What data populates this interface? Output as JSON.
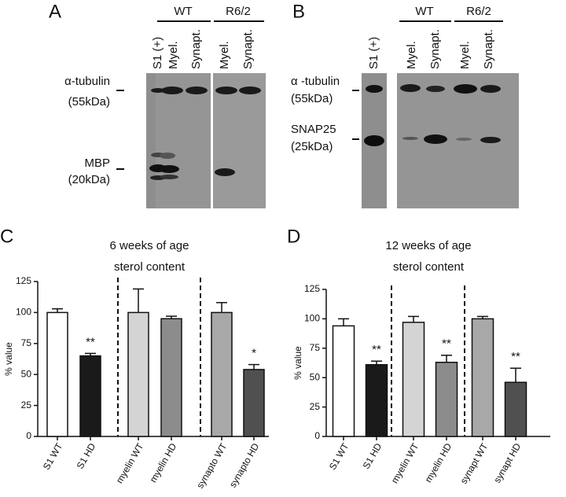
{
  "blots": [
    {
      "panel": "A",
      "groups": [
        "WT",
        "R6/2"
      ],
      "lanes": [
        "S1 (+)",
        "Myel.",
        "Synapt.",
        "Myel.",
        "Synapt."
      ],
      "markers": [
        {
          "name": "α-tubulin",
          "size": "(55kDa)"
        },
        {
          "name": "MBP",
          "size": "(20kDa)"
        }
      ]
    },
    {
      "panel": "B",
      "groups": [
        "WT",
        "R6/2"
      ],
      "lanes": [
        "S1 (+)",
        "Myel.",
        "Synapt.",
        "Myel.",
        "Synapt."
      ],
      "markers": [
        {
          "name": "α -tubulin",
          "size": "(55kDa)"
        },
        {
          "name": "SNAP25",
          "size": "(25kDa)"
        }
      ]
    }
  ],
  "chart_data": [
    {
      "type": "bar",
      "panel": "C",
      "title": [
        "6 weeks of age",
        "sterol content"
      ],
      "y_label": "% value",
      "categories": [
        "S1 WT",
        "S1 HD",
        "myelin WT",
        "myelin HD",
        "synapto WT",
        "synapto HD"
      ],
      "values": [
        100,
        65,
        100,
        95,
        100,
        54
      ],
      "errors": [
        3,
        2,
        19,
        2,
        8,
        4
      ],
      "annotations": [
        null,
        "**",
        null,
        null,
        null,
        "*"
      ],
      "colors": [
        "#ffffff",
        "#1a1a1a",
        "#d4d4d4",
        "#8c8c8c",
        "#a8a8a8",
        "#505050"
      ],
      "ylim": [
        0,
        125
      ],
      "yticks": [
        0,
        25,
        50,
        75,
        100,
        125
      ]
    },
    {
      "type": "bar",
      "panel": "D",
      "title": [
        "12 weeks of age",
        "sterol content"
      ],
      "y_label": "% value",
      "categories": [
        "S1 WT",
        "S1 HD",
        "myelin WT",
        "myelin HD",
        "synapt WT",
        "synapt HD"
      ],
      "values": [
        94,
        61,
        97,
        63,
        100,
        46
      ],
      "errors": [
        6,
        3,
        5,
        6,
        2,
        12
      ],
      "annotations": [
        null,
        "**",
        null,
        "**",
        null,
        "**"
      ],
      "colors": [
        "#ffffff",
        "#1a1a1a",
        "#d4d4d4",
        "#8c8c8c",
        "#a8a8a8",
        "#505050"
      ],
      "ylim": [
        0,
        125
      ],
      "yticks": [
        0,
        25,
        50,
        75,
        100,
        125
      ]
    }
  ]
}
